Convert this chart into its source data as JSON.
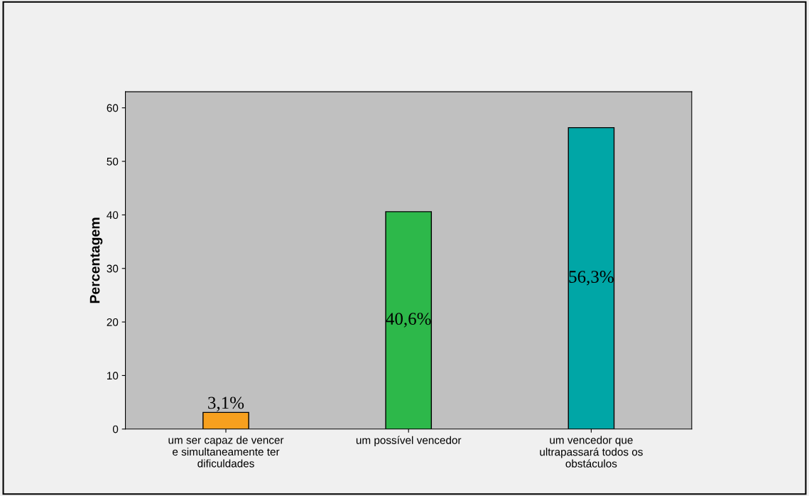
{
  "chart_data": {
    "type": "bar",
    "ylabel": "Percentagem",
    "categories": [
      "um ser capaz de vencer\ne simultaneamente ter\ndificuldades",
      "um possível vencedor",
      "um vencedor que\nultrapassará todos os\nobstáculos"
    ],
    "values": [
      3.1,
      40.6,
      56.3
    ],
    "colors": [
      "#f7a01e",
      "#2db84a",
      "#00a6a6"
    ],
    "value_labels": [
      "3,1%",
      "40,6%",
      "56,3%"
    ],
    "ylim": [
      0,
      63
    ],
    "yticks": [
      0,
      10,
      20,
      30,
      40,
      50,
      60
    ],
    "grid": false,
    "legend": false
  }
}
